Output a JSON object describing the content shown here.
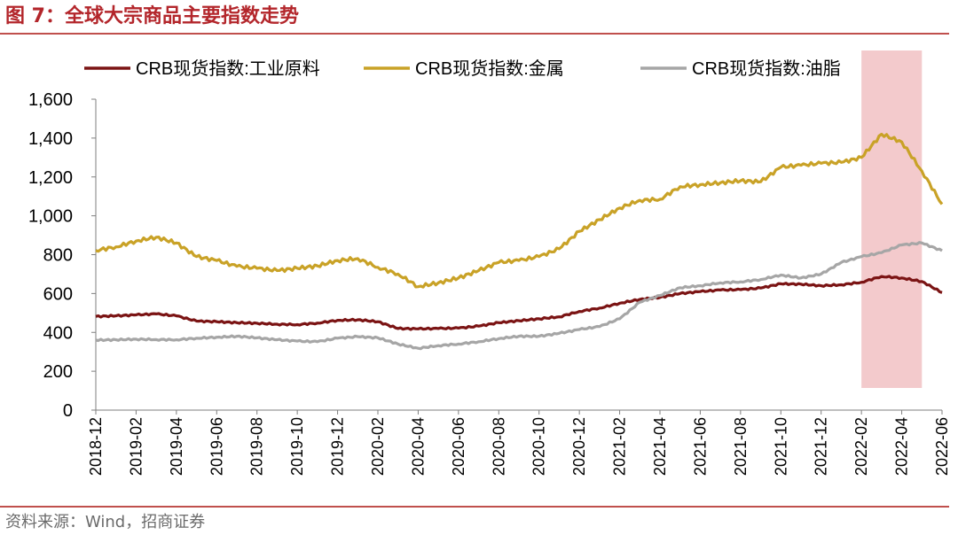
{
  "figure": {
    "title": "图 7：全球大宗商品主要指数走势",
    "source": "资料来源：Wind，招商证券"
  },
  "colors": {
    "title": "#b3262b",
    "rule": "#c0504d",
    "highlight": "#f2c4c6"
  },
  "chart_data": {
    "type": "line",
    "xlabel": "",
    "ylabel": "",
    "ylim": [
      0,
      1600
    ],
    "yticks": [
      0,
      200,
      400,
      600,
      800,
      1000,
      1200,
      1400,
      1600
    ],
    "ytick_labels": [
      "0",
      "200",
      "400",
      "600",
      "800",
      "1,000",
      "1,200",
      "1,400",
      "1,600"
    ],
    "xlim": [
      "2018-12",
      "2022-06"
    ],
    "xtick_labels": [
      "2018-12",
      "2019-02",
      "2019-04",
      "2019-06",
      "2019-08",
      "2019-10",
      "2019-12",
      "2020-02",
      "2020-04",
      "2020-06",
      "2020-08",
      "2020-10",
      "2020-12",
      "2021-02",
      "2021-04",
      "2021-06",
      "2021-08",
      "2021-10",
      "2021-12",
      "2022-02",
      "2022-04",
      "2022-06"
    ],
    "legend_position": "top",
    "highlight_period": {
      "start": "2022-02",
      "end": "2022-05"
    },
    "series": [
      {
        "name": "CRB现货指数:工业原料",
        "color": "#7b1414",
        "points": [
          [
            "2018-12",
            482
          ],
          [
            "2019-01",
            485
          ],
          [
            "2019-02",
            490
          ],
          [
            "2019-03",
            495
          ],
          [
            "2019-04",
            485
          ],
          [
            "2019-05",
            458
          ],
          [
            "2019-06",
            455
          ],
          [
            "2019-07",
            450
          ],
          [
            "2019-08",
            447
          ],
          [
            "2019-09",
            442
          ],
          [
            "2019-10",
            440
          ],
          [
            "2019-11",
            448
          ],
          [
            "2019-12",
            462
          ],
          [
            "2020-01",
            465
          ],
          [
            "2020-02",
            455
          ],
          [
            "2020-03",
            420
          ],
          [
            "2020-04",
            418
          ],
          [
            "2020-05",
            420
          ],
          [
            "2020-06",
            422
          ],
          [
            "2020-07",
            432
          ],
          [
            "2020-08",
            450
          ],
          [
            "2020-09",
            460
          ],
          [
            "2020-10",
            470
          ],
          [
            "2020-11",
            480
          ],
          [
            "2020-12",
            508
          ],
          [
            "2021-01",
            525
          ],
          [
            "2021-02",
            550
          ],
          [
            "2021-03",
            570
          ],
          [
            "2021-04",
            580
          ],
          [
            "2021-05",
            600
          ],
          [
            "2021-06",
            610
          ],
          [
            "2021-07",
            618
          ],
          [
            "2021-08",
            620
          ],
          [
            "2021-09",
            628
          ],
          [
            "2021-10",
            650
          ],
          [
            "2021-11",
            648
          ],
          [
            "2021-12",
            640
          ],
          [
            "2022-01",
            645
          ],
          [
            "2022-02",
            658
          ],
          [
            "2022-03",
            688
          ],
          [
            "2022-04",
            680
          ],
          [
            "2022-05",
            662
          ],
          [
            "2022-06",
            605
          ]
        ]
      },
      {
        "name": "CRB现货指数:金属",
        "color": "#c9a227",
        "points": [
          [
            "2018-12",
            822
          ],
          [
            "2019-01",
            840
          ],
          [
            "2019-02",
            870
          ],
          [
            "2019-03",
            890
          ],
          [
            "2019-04",
            860
          ],
          [
            "2019-05",
            790
          ],
          [
            "2019-06",
            770
          ],
          [
            "2019-07",
            740
          ],
          [
            "2019-08",
            730
          ],
          [
            "2019-09",
            718
          ],
          [
            "2019-10",
            730
          ],
          [
            "2019-11",
            742
          ],
          [
            "2019-12",
            770
          ],
          [
            "2020-01",
            780
          ],
          [
            "2020-02",
            735
          ],
          [
            "2020-03",
            700
          ],
          [
            "2020-04",
            635
          ],
          [
            "2020-05",
            655
          ],
          [
            "2020-06",
            680
          ],
          [
            "2020-07",
            718
          ],
          [
            "2020-08",
            760
          ],
          [
            "2020-09",
            770
          ],
          [
            "2020-10",
            790
          ],
          [
            "2020-11",
            830
          ],
          [
            "2020-12",
            920
          ],
          [
            "2021-01",
            980
          ],
          [
            "2021-02",
            1040
          ],
          [
            "2021-03",
            1080
          ],
          [
            "2021-04",
            1085
          ],
          [
            "2021-05",
            1150
          ],
          [
            "2021-06",
            1160
          ],
          [
            "2021-07",
            1170
          ],
          [
            "2021-08",
            1180
          ],
          [
            "2021-09",
            1175
          ],
          [
            "2021-10",
            1250
          ],
          [
            "2021-11",
            1260
          ],
          [
            "2021-12",
            1270
          ],
          [
            "2022-01",
            1275
          ],
          [
            "2022-02",
            1300
          ],
          [
            "2022-03",
            1420
          ],
          [
            "2022-04",
            1380
          ],
          [
            "2022-05",
            1230
          ],
          [
            "2022-06",
            1060
          ]
        ]
      },
      {
        "name": "CRB现货指数:油脂",
        "color": "#a6a6a6",
        "points": [
          [
            "2018-12",
            360
          ],
          [
            "2019-01",
            362
          ],
          [
            "2019-02",
            365
          ],
          [
            "2019-03",
            363
          ],
          [
            "2019-04",
            362
          ],
          [
            "2019-05",
            370
          ],
          [
            "2019-06",
            375
          ],
          [
            "2019-07",
            380
          ],
          [
            "2019-08",
            372
          ],
          [
            "2019-09",
            362
          ],
          [
            "2019-10",
            355
          ],
          [
            "2019-11",
            352
          ],
          [
            "2019-12",
            370
          ],
          [
            "2020-01",
            378
          ],
          [
            "2020-02",
            372
          ],
          [
            "2020-03",
            340
          ],
          [
            "2020-04",
            318
          ],
          [
            "2020-05",
            332
          ],
          [
            "2020-06",
            340
          ],
          [
            "2020-07",
            352
          ],
          [
            "2020-08",
            368
          ],
          [
            "2020-09",
            380
          ],
          [
            "2020-10",
            380
          ],
          [
            "2020-11",
            395
          ],
          [
            "2020-12",
            415
          ],
          [
            "2021-01",
            430
          ],
          [
            "2021-02",
            470
          ],
          [
            "2021-03",
            555
          ],
          [
            "2021-04",
            590
          ],
          [
            "2021-05",
            630
          ],
          [
            "2021-06",
            640
          ],
          [
            "2021-07",
            655
          ],
          [
            "2021-08",
            660
          ],
          [
            "2021-09",
            672
          ],
          [
            "2021-10",
            695
          ],
          [
            "2021-11",
            680
          ],
          [
            "2021-12",
            700
          ],
          [
            "2022-01",
            760
          ],
          [
            "2022-02",
            790
          ],
          [
            "2022-03",
            810
          ],
          [
            "2022-04",
            850
          ],
          [
            "2022-05",
            860
          ],
          [
            "2022-06",
            820
          ]
        ]
      }
    ]
  }
}
